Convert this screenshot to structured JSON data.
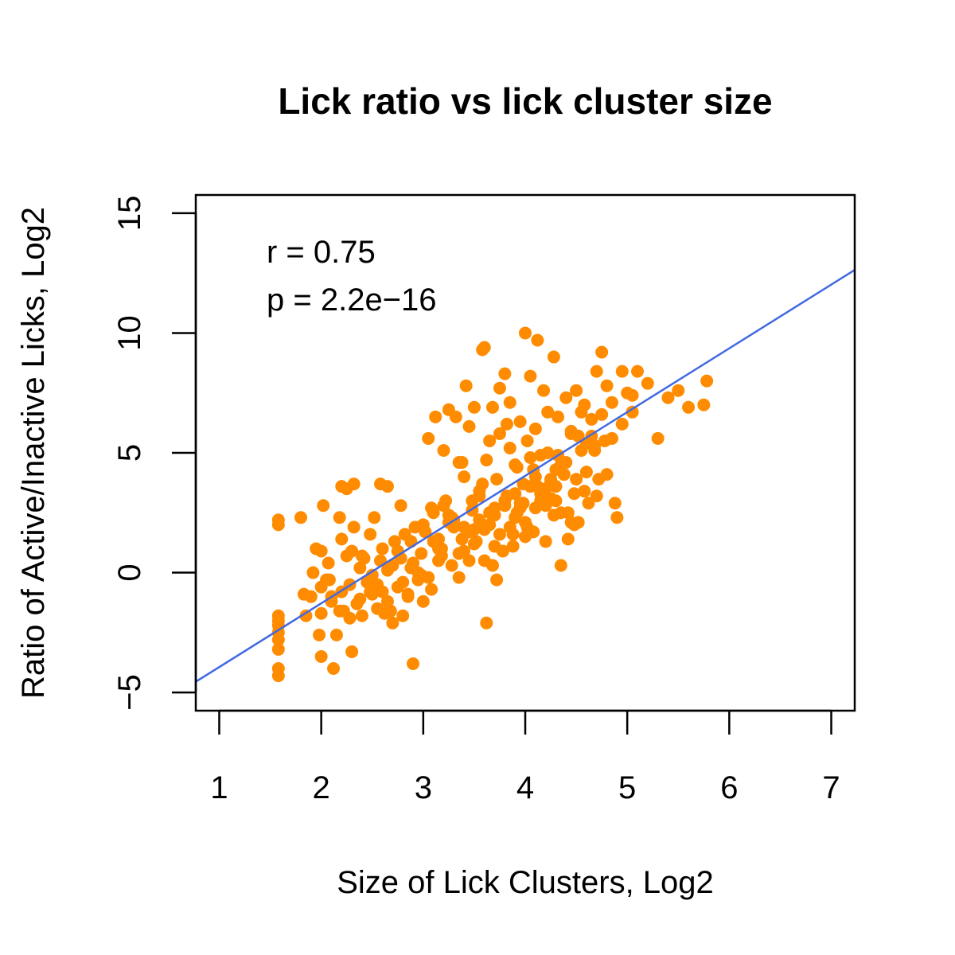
{
  "chart_data": {
    "type": "scatter",
    "title": "Lick ratio vs lick cluster size",
    "xlabel": "Size of Lick Clusters, Log2",
    "ylabel": "Ratio of Active/Inactive Licks, Log2",
    "xlim": [
      0.77,
      7.23
    ],
    "ylim": [
      -5.76,
      15.76
    ],
    "xticks": [
      1,
      2,
      3,
      4,
      5,
      6,
      7
    ],
    "yticks": [
      -5,
      0,
      5,
      10,
      15
    ],
    "grid": false,
    "legend": "none",
    "annotations": [
      "r = 0.75",
      "p = 2.2e−16"
    ],
    "colors": {
      "points": "#FF8C00",
      "fit_line": "#4169E1",
      "axes": "#000000"
    },
    "fit_line": {
      "slope": 2.66,
      "intercept": -6.6
    },
    "series": [
      {
        "x": [
          1.58,
          1.58,
          1.58,
          1.58,
          1.58,
          1.58,
          1.58,
          1.58,
          1.58,
          1.58,
          1.8,
          1.83,
          1.85,
          1.9,
          1.92,
          1.95,
          1.98,
          2.0,
          2.0,
          2.0,
          2.02,
          2.05,
          2.07,
          2.1,
          2.12,
          2.15,
          2.18,
          2.2,
          2.2,
          2.22,
          2.25,
          2.25,
          2.28,
          2.3,
          2.32,
          2.32,
          2.35,
          2.38,
          2.4,
          2.42,
          2.45,
          2.48,
          2.5,
          2.52,
          2.55,
          2.58,
          2.6,
          2.62,
          2.65,
          2.65,
          2.7,
          2.72,
          2.75,
          2.78,
          2.8,
          2.82,
          2.85,
          2.88,
          2.9,
          2.92,
          2.95,
          2.98,
          3.0,
          3.02,
          3.05,
          3.08,
          3.1,
          3.12,
          3.15,
          3.18,
          3.2,
          3.22,
          3.25,
          3.28,
          3.3,
          3.32,
          3.35,
          3.38,
          3.4,
          3.42,
          3.45,
          3.48,
          3.5,
          3.52,
          3.55,
          3.58,
          3.6,
          3.62,
          3.65,
          3.68,
          3.7,
          3.72,
          3.75,
          3.78,
          3.8,
          3.82,
          3.85,
          3.88,
          3.9,
          3.92,
          3.95,
          3.98,
          4.0,
          4.02,
          4.05,
          4.08,
          4.1,
          4.12,
          4.15,
          4.18,
          4.2,
          4.22,
          4.25,
          4.28,
          4.3,
          4.32,
          4.35,
          4.38,
          4.4,
          4.42,
          4.45,
          4.48,
          4.5,
          4.52,
          4.55,
          4.58,
          4.6,
          4.62,
          4.65,
          4.68,
          4.7,
          4.72,
          4.75,
          4.8,
          4.85,
          4.9,
          4.95,
          5.0,
          5.05,
          5.1,
          5.2,
          5.3,
          5.4,
          5.5,
          5.6,
          5.75,
          5.78,
          3.6,
          3.75,
          3.9,
          4.05,
          4.2,
          3.85,
          3.95,
          4.1,
          4.25,
          4.35,
          3.7,
          3.55,
          3.65,
          3.8,
          4.0,
          4.15,
          4.3,
          4.45,
          3.5,
          3.4,
          3.3,
          3.2,
          3.1,
          3.0,
          2.9,
          2.8,
          2.7,
          2.6,
          2.5,
          2.4,
          2.3,
          2.2,
          2.1,
          2.0,
          3.62,
          3.72,
          3.82,
          3.92,
          4.02,
          4.12,
          4.22,
          4.32,
          4.42,
          4.52,
          3.45,
          3.35,
          3.25,
          3.15,
          3.05,
          2.95,
          2.85,
          2.75,
          2.65,
          2.55,
          3.68,
          3.78,
          3.88,
          3.98,
          4.08,
          4.18,
          4.28,
          4.38,
          4.48,
          4.58,
          4.68,
          4.78,
          4.88,
          3.58,
          3.48,
          3.38,
          3.28,
          3.18,
          3.08,
          2.98,
          2.88,
          2.78,
          2.68,
          2.58,
          2.48,
          2.38,
          2.28,
          2.18,
          2.08,
          3.9,
          4.0,
          4.1,
          4.2,
          4.3,
          3.7,
          3.8,
          3.6,
          3.5,
          3.4,
          4.4,
          4.5,
          4.6,
          4.7,
          4.8,
          4.05,
          3.95,
          3.85,
          3.75,
          3.65,
          4.15,
          4.25,
          4.35,
          4.45,
          4.55,
          3.55,
          3.45,
          3.35,
          3.25,
          3.15,
          4.65,
          4.75,
          4.85,
          4.95,
          5.05
        ],
        "y": [
          2.2,
          2.0,
          -1.8,
          -2.2,
          -2.5,
          -2.8,
          -3.2,
          -4.0,
          -4.3,
          -2.0,
          2.3,
          -0.9,
          -1.8,
          -1.0,
          0.0,
          1.0,
          -2.6,
          0.9,
          -1.7,
          -3.5,
          2.8,
          -0.3,
          0.4,
          -1.0,
          -4.0,
          -2.6,
          2.3,
          3.6,
          -0.8,
          -1.6,
          0.7,
          3.5,
          -0.5,
          -3.3,
          3.7,
          1.9,
          -1.3,
          0.2,
          -1.8,
          0.6,
          -0.4,
          1.6,
          -0.9,
          2.3,
          -1.5,
          3.7,
          1.0,
          -1.7,
          0.1,
          3.6,
          -2.1,
          1.3,
          -0.6,
          2.8,
          -1.8,
          1.6,
          -1.0,
          0.2,
          -3.8,
          1.9,
          -0.3,
          0.8,
          -1.2,
          1.7,
          5.6,
          -0.7,
          2.5,
          6.5,
          0.5,
          1.0,
          5.1,
          3.0,
          6.8,
          0.3,
          2.2,
          6.5,
          -0.2,
          4.6,
          1.9,
          7.8,
          0.5,
          2.6,
          6.9,
          1.3,
          3.4,
          9.3,
          0.5,
          4.7,
          2.0,
          6.9,
          1.1,
          3.9,
          5.8,
          0.9,
          8.3,
          3.2,
          7.1,
          1.6,
          4.5,
          2.5,
          6.3,
          3.7,
          10.0,
          1.9,
          8.2,
          4.3,
          2.7,
          9.7,
          3.3,
          7.6,
          1.3,
          5.0,
          3.8,
          9.0,
          3.0,
          6.5,
          0.3,
          4.1,
          7.3,
          1.4,
          5.8,
          3.3,
          7.6,
          2.1,
          5.1,
          7.0,
          4.2,
          2.9,
          6.4,
          5.3,
          8.4,
          3.9,
          9.2,
          7.8,
          5.6,
          2.3,
          8.4,
          7.5,
          6.7,
          8.4,
          7.9,
          5.6,
          7.3,
          7.6,
          6.9,
          7.0,
          8.0,
          9.4,
          7.7,
          2.3,
          4.8,
          3.5,
          5.2,
          2.9,
          6.0,
          3.9,
          4.5,
          2.7,
          3.2,
          5.5,
          2.8,
          1.5,
          3.0,
          4.3,
          2.1,
          1.8,
          4.0,
          1.9,
          2.8,
          1.3,
          2.0,
          0.4,
          -0.4,
          0.3,
          -0.8,
          -0.1,
          0.7,
          0.9,
          1.4,
          -1.2,
          -0.6,
          -2.1,
          -0.3,
          6.2,
          4.4,
          5.5,
          3.6,
          6.7,
          4.9,
          2.5,
          5.7,
          6.1,
          4.6,
          2.4,
          1.0,
          -0.2,
          0.0,
          -0.9,
          0.9,
          -1.2,
          -0.5,
          0.3,
          0.9,
          1.1,
          2.9,
          1.7,
          3.2,
          2.4,
          4.1,
          2.0,
          3.4,
          5.1,
          5.5,
          2.9,
          3.7,
          3.0,
          1.4,
          2.3,
          0.7,
          2.7,
          -0.1,
          1.3,
          0.6,
          -1.6,
          0.5,
          -0.8,
          -1.1,
          -1.9,
          -1.6,
          -0.3,
          3.3,
          2.1,
          4.0,
          2.8,
          3.6,
          2.4,
          3.0,
          1.8,
          1.2,
          0.9,
          4.6,
          3.9,
          5.4,
          3.2,
          4.1,
          3.6,
          2.7,
          1.9,
          1.6,
          2.5,
          4.9,
          3.1,
          2.5,
          5.9,
          6.7,
          2.2,
          1.7,
          0.8,
          2.1,
          1.4,
          5.7,
          6.6,
          7.1,
          6.2,
          7.4
        ]
      }
    ]
  }
}
